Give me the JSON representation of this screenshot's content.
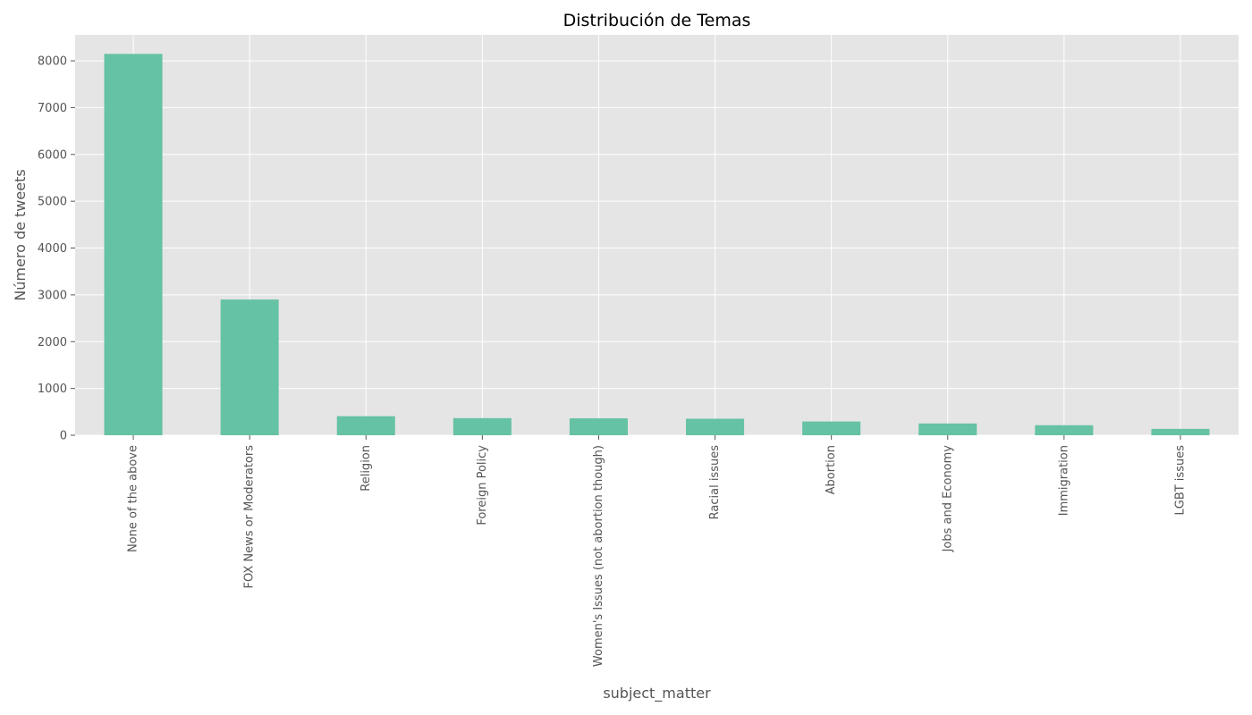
{
  "chart_data": {
    "type": "bar",
    "title": "Distribución de Temas",
    "xlabel": "subject_matter",
    "ylabel": "Número de tweets",
    "categories": [
      "None of the above",
      "FOX News or Moderators",
      "Religion",
      "Foreign Policy",
      "Women's Issues (not abortion though)",
      "Racial issues",
      "Abortion",
      "Jobs and Economy",
      "Immigration",
      "LGBT issues"
    ],
    "values": [
      8148,
      2900,
      407,
      366,
      362,
      353,
      294,
      252,
      214,
      136
    ],
    "ylim": [
      0,
      8555
    ],
    "yticks": [
      0,
      1000,
      2000,
      3000,
      4000,
      5000,
      6000,
      7000,
      8000
    ],
    "grid": true,
    "legend": "none",
    "colors": {
      "bar": "#66c2a5",
      "plot_background": "#e5e5e5",
      "grid": "#ffffff",
      "text": "#555555",
      "title": "#000000"
    }
  }
}
